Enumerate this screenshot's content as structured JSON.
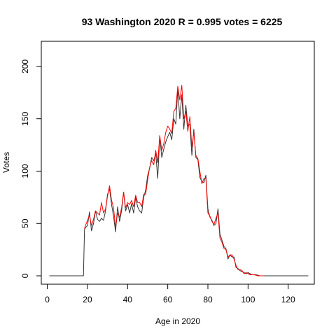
{
  "chart_data": {
    "type": "line",
    "title": "93 Washington 2020 R = 0.995 votes = 6225",
    "xlabel": "Age in 2020",
    "ylabel": "Votes",
    "xlim": [
      -3,
      133
    ],
    "ylim": [
      -8,
      224
    ],
    "xticks": [
      0,
      20,
      40,
      60,
      80,
      100,
      120
    ],
    "yticks": [
      0,
      50,
      100,
      150,
      200
    ],
    "grid": false,
    "legend": "none",
    "series": [
      {
        "color": "#333333",
        "points": [
          [
            1,
            0
          ],
          [
            18,
            0
          ],
          [
            18.5,
            44
          ],
          [
            19,
            46
          ],
          [
            20,
            48
          ],
          [
            21,
            61
          ],
          [
            22,
            43
          ],
          [
            23,
            50
          ],
          [
            24,
            62
          ],
          [
            25,
            54
          ],
          [
            26,
            52
          ],
          [
            27,
            55
          ],
          [
            28,
            53
          ],
          [
            29,
            62
          ],
          [
            30,
            78
          ],
          [
            31,
            83
          ],
          [
            32,
            68
          ],
          [
            33,
            57
          ],
          [
            34,
            42
          ],
          [
            35,
            66
          ],
          [
            36,
            52
          ],
          [
            37,
            62
          ],
          [
            38,
            80
          ],
          [
            39,
            62
          ],
          [
            40,
            68
          ],
          [
            41,
            60
          ],
          [
            42,
            69
          ],
          [
            43,
            60
          ],
          [
            44,
            75
          ],
          [
            45,
            66
          ],
          [
            46,
            62
          ],
          [
            47,
            60
          ],
          [
            48,
            75
          ],
          [
            49,
            82
          ],
          [
            50,
            96
          ],
          [
            51,
            103
          ],
          [
            52,
            113
          ],
          [
            53,
            110
          ],
          [
            54,
            117
          ],
          [
            55,
            93
          ],
          [
            56,
            133
          ],
          [
            57,
            113
          ],
          [
            58,
            121
          ],
          [
            59,
            128
          ],
          [
            60,
            133
          ],
          [
            61,
            137
          ],
          [
            62,
            130
          ],
          [
            63,
            150
          ],
          [
            64,
            145
          ],
          [
            65,
            178
          ],
          [
            66,
            150
          ],
          [
            67,
            173
          ],
          [
            68,
            140
          ],
          [
            69,
            163
          ],
          [
            70,
            143
          ],
          [
            71,
            145
          ],
          [
            72,
            115
          ],
          [
            73,
            140
          ],
          [
            74,
            113
          ],
          [
            75,
            111
          ],
          [
            76,
            94
          ],
          [
            77,
            90
          ],
          [
            78,
            89
          ],
          [
            79,
            96
          ],
          [
            80,
            64
          ],
          [
            81,
            56
          ],
          [
            82,
            53
          ],
          [
            83,
            48
          ],
          [
            84,
            50
          ],
          [
            85,
            64
          ],
          [
            86,
            40
          ],
          [
            87,
            34
          ],
          [
            88,
            28
          ],
          [
            89,
            26
          ],
          [
            90,
            16
          ],
          [
            91,
            20
          ],
          [
            92,
            18
          ],
          [
            93,
            18
          ],
          [
            94,
            8
          ],
          [
            95,
            7
          ],
          [
            96,
            5
          ],
          [
            97,
            4
          ],
          [
            98,
            3
          ],
          [
            99,
            2
          ],
          [
            100,
            3
          ],
          [
            101,
            2
          ],
          [
            102,
            1
          ],
          [
            103,
            1
          ],
          [
            104,
            1
          ],
          [
            106,
            0
          ],
          [
            130,
            0
          ]
        ]
      },
      {
        "color": "#ff0000",
        "points": [
          [
            18.5,
            45
          ],
          [
            19,
            48
          ],
          [
            20,
            53
          ],
          [
            21,
            58
          ],
          [
            22,
            48
          ],
          [
            23,
            54
          ],
          [
            24,
            62
          ],
          [
            25,
            60
          ],
          [
            26,
            58
          ],
          [
            27,
            70
          ],
          [
            28,
            60
          ],
          [
            29,
            64
          ],
          [
            30,
            76
          ],
          [
            31,
            86
          ],
          [
            32,
            72
          ],
          [
            33,
            65
          ],
          [
            34,
            46
          ],
          [
            35,
            60
          ],
          [
            36,
            56
          ],
          [
            37,
            65
          ],
          [
            38,
            80
          ],
          [
            39,
            65
          ],
          [
            40,
            70
          ],
          [
            41,
            68
          ],
          [
            42,
            72
          ],
          [
            43,
            66
          ],
          [
            44,
            77
          ],
          [
            45,
            70
          ],
          [
            46,
            70
          ],
          [
            47,
            66
          ],
          [
            48,
            78
          ],
          [
            49,
            78
          ],
          [
            50,
            92
          ],
          [
            51,
            104
          ],
          [
            52,
            110
          ],
          [
            53,
            106
          ],
          [
            54,
            120
          ],
          [
            55,
            108
          ],
          [
            56,
            134
          ],
          [
            57,
            120
          ],
          [
            58,
            126
          ],
          [
            59,
            137
          ],
          [
            60,
            143
          ],
          [
            61,
            140
          ],
          [
            62,
            136
          ],
          [
            63,
            157
          ],
          [
            64,
            160
          ],
          [
            65,
            181
          ],
          [
            66,
            168
          ],
          [
            67,
            182
          ],
          [
            68,
            150
          ],
          [
            69,
            157
          ],
          [
            70,
            138
          ],
          [
            71,
            152
          ],
          [
            72,
            123
          ],
          [
            73,
            137
          ],
          [
            74,
            115
          ],
          [
            75,
            112
          ],
          [
            76,
            100
          ],
          [
            77,
            88
          ],
          [
            78,
            93
          ],
          [
            79,
            93
          ],
          [
            80,
            60
          ],
          [
            81,
            57
          ],
          [
            82,
            52
          ],
          [
            83,
            49
          ],
          [
            84,
            55
          ],
          [
            85,
            60
          ],
          [
            86,
            36
          ],
          [
            87,
            32
          ],
          [
            88,
            26
          ],
          [
            89,
            25
          ],
          [
            90,
            18
          ],
          [
            91,
            20
          ],
          [
            92,
            20
          ],
          [
            93,
            16
          ],
          [
            94,
            10
          ],
          [
            95,
            6
          ],
          [
            96,
            6
          ],
          [
            97,
            5
          ],
          [
            98,
            2
          ],
          [
            99,
            3
          ],
          [
            100,
            2
          ],
          [
            101,
            1
          ],
          [
            102,
            1
          ],
          [
            103,
            1
          ],
          [
            105,
            0
          ],
          [
            106,
            0
          ],
          [
            108,
            0
          ]
        ]
      }
    ]
  }
}
